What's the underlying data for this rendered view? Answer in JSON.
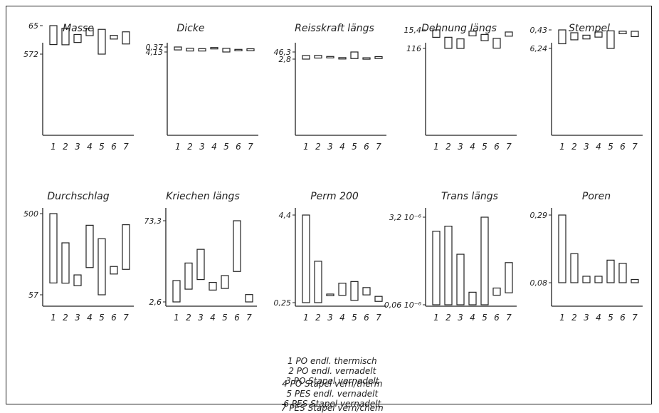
{
  "chart_data": [
    {
      "type": "bar",
      "title": "Masse",
      "ytick_labels": [
        "572",
        "65"
      ],
      "categories": [
        "1",
        "2",
        "3",
        "4",
        "5",
        "6",
        "7"
      ],
      "ranges": [
        [
          65,
          507
        ],
        [
          127,
          512
        ],
        [
          272,
          458
        ],
        [
          125,
          298
        ],
        [
          152,
          730
        ],
        [
          293,
          378
        ],
        [
          210,
          493
        ]
      ]
    },
    {
      "type": "bar",
      "title": "Dicke",
      "ytick_labels": [
        "4,13",
        "0,37"
      ],
      "categories": [
        "1",
        "2",
        "3",
        "4",
        "5",
        "6",
        "7"
      ],
      "ranges": [
        [
          0.37,
          2.8
        ],
        [
          1.44,
          3.7
        ],
        [
          1.76,
          3.72
        ],
        [
          0.79,
          1.37
        ],
        [
          1.48,
          4.53
        ],
        [
          2.34,
          2.48
        ],
        [
          1.84,
          3.5
        ]
      ]
    },
    {
      "type": "bar",
      "title": "Reisskraft längs",
      "ytick_labels": [
        "46,3",
        "2,8"
      ],
      "categories": [
        "1",
        "2",
        "3",
        "4",
        "5",
        "6",
        "7"
      ],
      "ranges": [
        [
          2.8,
          26.2
        ],
        [
          9.6,
          26.6
        ],
        [
          12.6,
          19.9
        ],
        [
          8.2,
          12.7
        ],
        [
          6.4,
          49.0
        ],
        [
          2.8,
          11.6
        ],
        [
          6.6,
          19.1
        ]
      ]
    },
    {
      "type": "bar",
      "title": "Dehnung längs",
      "ytick_labels": [
        "116",
        "15,4"
      ],
      "categories": [
        "1",
        "2",
        "3",
        "4",
        "5",
        "6",
        "7"
      ],
      "ranges": [
        [
          17.8,
          57.6
        ],
        [
          57.4,
          117
        ],
        [
          66.1,
          117.4
        ],
        [
          24.6,
          49.8
        ],
        [
          42.2,
          75.6
        ],
        [
          63.3,
          116
        ],
        [
          29.1,
          51.5
        ]
      ]
    },
    {
      "type": "bar",
      "title": "Stempel",
      "ytick_labels": [
        "6,24",
        "0,43"
      ],
      "categories": [
        "1",
        "2",
        "3",
        "4",
        "5",
        "6",
        "7"
      ],
      "ranges": [
        [
          1.0,
          5.11
        ],
        [
          1.84,
          3.94
        ],
        [
          2.56,
          3.68
        ],
        [
          1.62,
          3.14
        ],
        [
          1.27,
          6.49
        ],
        [
          1.39,
          2.13
        ],
        [
          1.41,
          2.98
        ]
      ]
    },
    {
      "type": "bar",
      "title": "Durchschlag",
      "ytick_labels": [
        "500",
        "57"
      ],
      "categories": [
        "1",
        "2",
        "3",
        "4",
        "5",
        "6",
        "7"
      ],
      "ranges": [
        [
          123,
          510
        ],
        [
          122,
          347
        ],
        [
          108,
          168
        ],
        [
          209,
          445
        ],
        [
          57,
          370
        ],
        [
          173,
          215
        ],
        [
          199,
          448
        ]
      ]
    },
    {
      "type": "bar",
      "title": "Kriechen längs",
      "ytick_labels": [
        "73,3",
        "2,6"
      ],
      "categories": [
        "1",
        "2",
        "3",
        "4",
        "5",
        "6",
        "7"
      ],
      "ranges": [
        [
          2.6,
          23.5
        ],
        [
          15.1,
          40.7
        ],
        [
          24.5,
          54.1
        ],
        [
          14.2,
          21.7
        ],
        [
          15.8,
          28.4
        ],
        [
          32.4,
          82.1
        ],
        [
          2.6,
          9.8
        ]
      ]
    },
    {
      "type": "bar",
      "title": "Perm 200",
      "ytick_labels": [
        "4,4",
        "0,25"
      ],
      "categories": [
        "1",
        "2",
        "3",
        "4",
        "5",
        "6",
        "7"
      ],
      "ranges": [
        [
          0.25,
          4.44
        ],
        [
          0.25,
          2.23
        ],
        [
          0.58,
          0.66
        ],
        [
          0.6,
          1.18
        ],
        [
          0.36,
          1.26
        ],
        [
          0.62,
          0.97
        ],
        [
          0.31,
          0.55
        ]
      ]
    },
    {
      "type": "bar",
      "title": "Trans längs",
      "ytick_labels": [
        "3,2 10⁻⁶",
        "0,06 10⁻⁶"
      ],
      "categories": [
        "1",
        "2",
        "3",
        "4",
        "5",
        "6",
        "7"
      ],
      "ranges": [
        [
          0.1,
          2.56
        ],
        [
          0.1,
          2.73
        ],
        [
          0.1,
          1.79
        ],
        [
          0.1,
          0.52
        ],
        [
          0.1,
          3.03
        ],
        [
          0.42,
          0.66
        ],
        [
          0.5,
          1.51
        ]
      ]
    },
    {
      "type": "bar",
      "title": "Poren",
      "ytick_labels": [
        "0,29",
        "0,08"
      ],
      "categories": [
        "1",
        "2",
        "3",
        "4",
        "5",
        "6",
        "7"
      ],
      "ranges": [
        [
          0.08,
          0.29
        ],
        [
          0.08,
          0.17
        ],
        [
          0.08,
          0.1
        ],
        [
          0.08,
          0.1
        ],
        [
          0.08,
          0.15
        ],
        [
          0.08,
          0.14
        ],
        [
          0.08,
          0.09
        ]
      ]
    }
  ],
  "legend": {
    "row1": [
      "1 PO endl. thermisch",
      "2 PO endl. vernadelt",
      "3 PO Stapel vernadelt"
    ],
    "row2": [
      "4 PO Stapel vern/therm",
      "5 PES endl. vernadelt",
      "6 PES Stapel vernadelt"
    ],
    "row3": [
      "7 PES Stapel vern/chem"
    ]
  }
}
